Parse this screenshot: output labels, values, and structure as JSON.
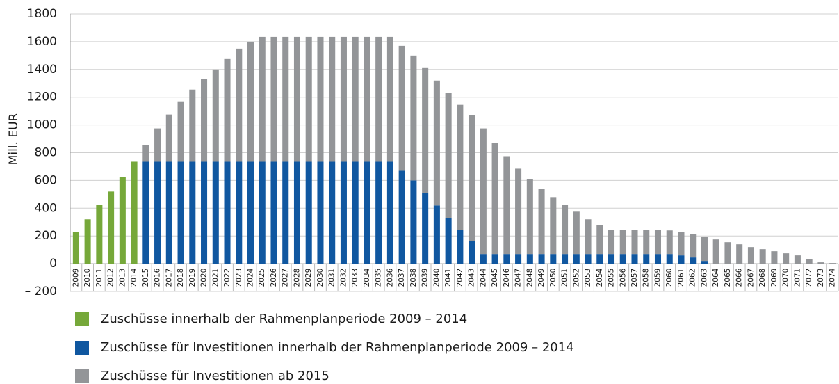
{
  "chart_data": {
    "type": "stacked_bar",
    "y_label": "Mill. EUR",
    "categories": [
      "2009",
      "2010",
      "2011",
      "2012",
      "2013",
      "2014",
      "2015",
      "2016",
      "2017",
      "2018",
      "2019",
      "2020",
      "2021",
      "2022",
      "2023",
      "2024",
      "2025",
      "2026",
      "2027",
      "2028",
      "2029",
      "2030",
      "2031",
      "2032",
      "2033",
      "2034",
      "2035",
      "2036",
      "2037",
      "2038",
      "2039",
      "2040",
      "2041",
      "2042",
      "2043",
      "2044",
      "2045",
      "2046",
      "2047",
      "2048",
      "2049",
      "2050",
      "2051",
      "2052",
      "2053",
      "2054",
      "2055",
      "2056",
      "2057",
      "2058",
      "2059",
      "2060",
      "2061",
      "2062",
      "2063",
      "2064",
      "2065",
      "2066",
      "2067",
      "2068",
      "2069",
      "2070",
      "2071",
      "2072",
      "2073",
      "2074"
    ],
    "series": [
      {
        "name": "Zuschüsse innerhalb der Rahmenplanperiode 2009 – 2014",
        "color": "#76a83a",
        "values": [
          230,
          320,
          425,
          520,
          625,
          735,
          0,
          0,
          0,
          0,
          0,
          0,
          0,
          0,
          0,
          0,
          0,
          0,
          0,
          0,
          0,
          0,
          0,
          0,
          0,
          0,
          0,
          0,
          0,
          0,
          0,
          0,
          0,
          0,
          0,
          0,
          0,
          0,
          0,
          0,
          0,
          0,
          0,
          0,
          0,
          0,
          0,
          0,
          0,
          0,
          0,
          0,
          0,
          0,
          0,
          0,
          0,
          0,
          0,
          0,
          0,
          0,
          0,
          0,
          0,
          0
        ]
      },
      {
        "name": "Zuschüsse für Investitionen innerhalb der Rahmenplanperiode 2009 – 2014",
        "color": "#1057a0",
        "values": [
          0,
          0,
          0,
          0,
          0,
          0,
          735,
          735,
          735,
          735,
          735,
          735,
          735,
          735,
          735,
          735,
          735,
          735,
          735,
          735,
          735,
          735,
          735,
          735,
          735,
          735,
          735,
          735,
          670,
          600,
          510,
          420,
          330,
          245,
          165,
          70,
          70,
          70,
          70,
          70,
          70,
          70,
          70,
          70,
          70,
          70,
          70,
          70,
          70,
          70,
          70,
          70,
          60,
          45,
          20,
          0,
          0,
          0,
          0,
          0,
          0,
          0,
          0,
          0,
          0,
          0
        ]
      },
      {
        "name": "Zuschüsse für Investitionen ab 2015",
        "color": "#939598",
        "values": [
          0,
          0,
          0,
          0,
          0,
          0,
          120,
          240,
          340,
          435,
          520,
          595,
          665,
          740,
          815,
          865,
          900,
          900,
          900,
          900,
          900,
          900,
          900,
          900,
          900,
          900,
          900,
          900,
          900,
          900,
          900,
          900,
          900,
          900,
          905,
          905,
          800,
          705,
          615,
          540,
          470,
          410,
          355,
          305,
          250,
          210,
          175,
          175,
          175,
          175,
          175,
          170,
          170,
          170,
          175,
          175,
          155,
          140,
          120,
          105,
          90,
          75,
          60,
          35,
          10,
          5
        ]
      }
    ],
    "ylim": [
      -200,
      1800
    ],
    "yticks": [
      {
        "value": -200,
        "label": "– 200"
      },
      0,
      200,
      400,
      600,
      800,
      1000,
      1200,
      1400,
      1600,
      1800
    ],
    "grid": true
  }
}
